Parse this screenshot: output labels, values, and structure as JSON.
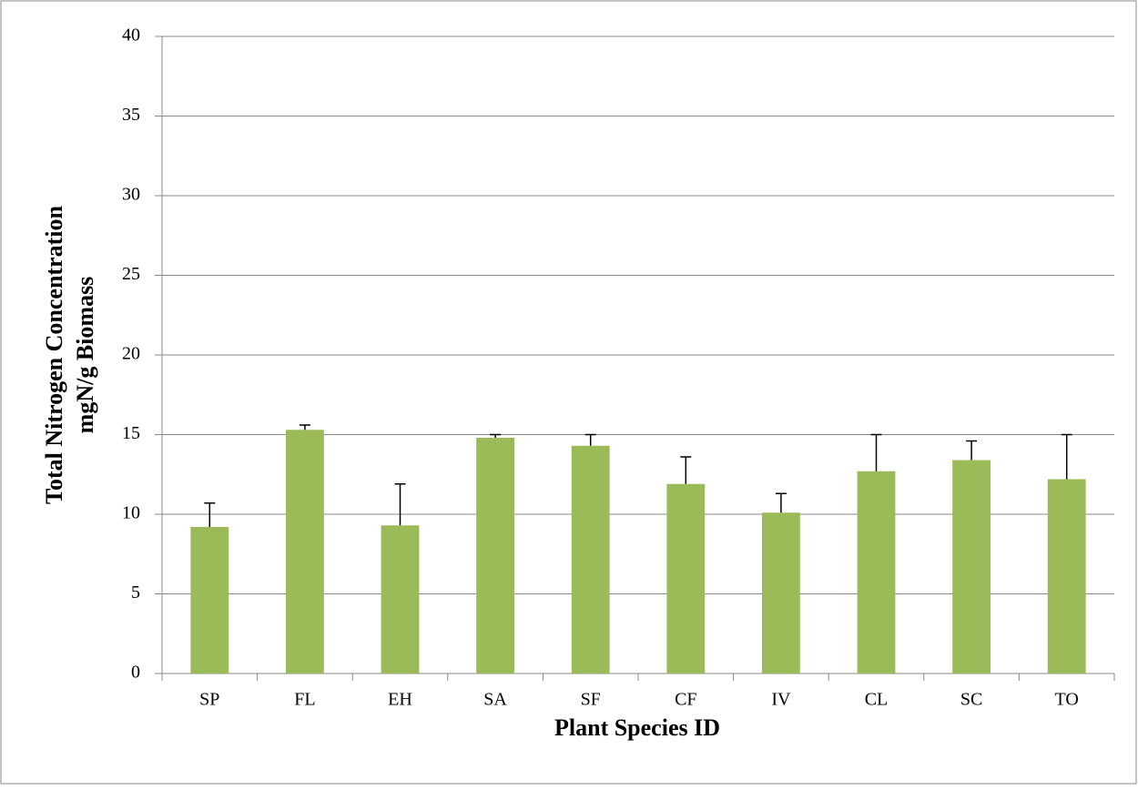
{
  "chart_data": {
    "type": "bar",
    "xlabel": "Plant Species ID",
    "ylabel": [
      "Total Nitrogen Concentration",
      "mgN/g Biomass"
    ],
    "categories": [
      "SP",
      "FL",
      "EH",
      "SA",
      "SF",
      "CF",
      "IV",
      "CL",
      "SC",
      "TO"
    ],
    "values": [
      9.2,
      15.3,
      9.3,
      14.8,
      14.3,
      11.9,
      10.1,
      12.7,
      13.4,
      12.2
    ],
    "errors": [
      1.5,
      0.3,
      2.6,
      0.2,
      0.7,
      1.7,
      1.2,
      2.3,
      1.2,
      2.8
    ],
    "color": "#9bbb59",
    "ylim": [
      0,
      40
    ],
    "yticks": [
      0,
      5,
      10,
      15,
      20,
      25,
      30,
      35,
      40
    ],
    "grid": true
  }
}
